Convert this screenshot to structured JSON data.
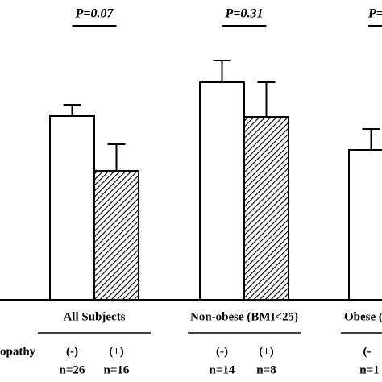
{
  "chart_data": {
    "type": "bar",
    "ylim": [
      0,
      300
    ],
    "row_label": "opathy",
    "groups": [
      {
        "label": "All Subjects",
        "p_value": "P=0.07",
        "bars": [
          {
            "sign": "(-)",
            "n": "n=26",
            "value": 228,
            "error": 14
          },
          {
            "sign": "(+)",
            "n": "n=16",
            "value": 160,
            "error": 33
          }
        ]
      },
      {
        "label": "Non-obese (BMI<25)",
        "p_value": "P=0.31",
        "bars": [
          {
            "sign": "(-)",
            "n": "n=14",
            "value": 270,
            "error": 27
          },
          {
            "sign": "(+)",
            "n": "n=8",
            "value": 227,
            "error": 43
          }
        ]
      },
      {
        "label": "Obese (",
        "p_value": "P=",
        "bars": [
          {
            "sign": "(-",
            "n": "n=1",
            "value": 186,
            "error": 26
          }
        ]
      }
    ]
  }
}
